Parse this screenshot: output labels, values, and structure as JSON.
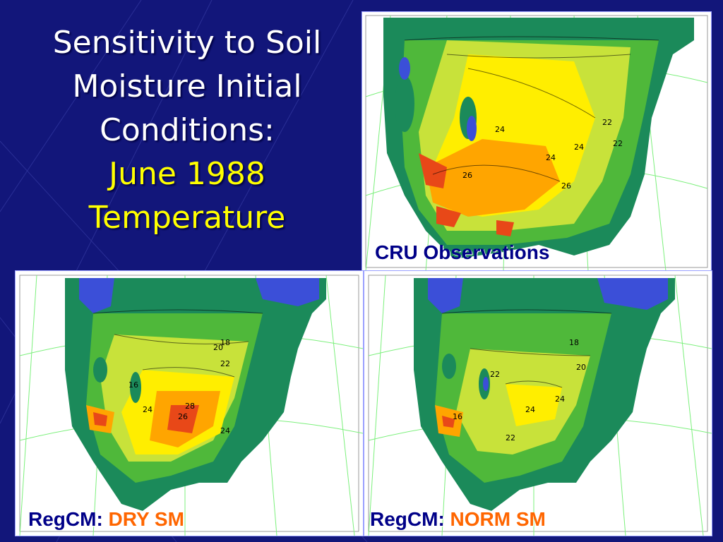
{
  "title": {
    "line1": "Sensitivity to Soil",
    "line2": "Moisture Initial",
    "line3": "Conditions:",
    "line4": "June 1988",
    "line5": "Temperature"
  },
  "panels": {
    "top_right": {
      "caption": "CRU Observations",
      "contour_labels": [
        "24",
        "24",
        "26",
        "22",
        "22",
        "26",
        "24"
      ]
    },
    "bottom_left": {
      "caption_prefix": "RegCM:",
      "caption_highlight": "DRY SM",
      "contour_labels": [
        "18",
        "20",
        "22",
        "16",
        "24",
        "26",
        "28",
        "24"
      ]
    },
    "bottom_right": {
      "caption_prefix": "RegCM:",
      "caption_highlight": "NORM SM",
      "contour_labels": [
        "18",
        "22",
        "24",
        "16",
        "22",
        "24",
        "20"
      ]
    }
  },
  "colors": {
    "background": "#12167a",
    "title_text": "#ffffff",
    "title_accent": "#ffff00",
    "caption_text": "#000088",
    "caption_highlight": "#ff6600",
    "cold": "#3b4fd8",
    "cool": "#1b8a5a",
    "mild": "#4fb83a",
    "warm": "#c8e23a",
    "hot": "#ffee00",
    "hotter": "#ffa500",
    "hottest": "#e84818"
  }
}
